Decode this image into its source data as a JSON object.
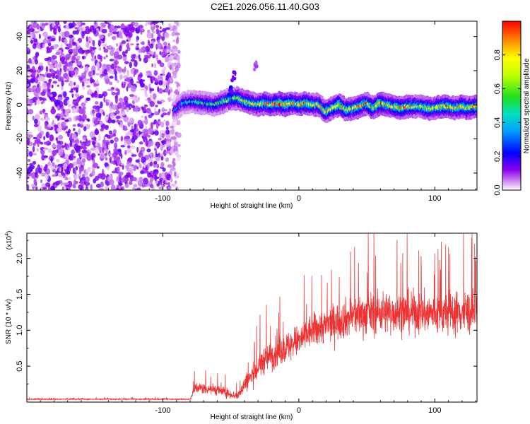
{
  "figure": {
    "title": "C2E1.2026.056.11.40.G03"
  },
  "chart_data": [
    {
      "type": "heatmap",
      "title": "",
      "xlabel": "Height of straight line (km)",
      "ylabel": "Frequency (Hz)",
      "xlim": [
        -200,
        131
      ],
      "ylim": [
        -50,
        49
      ],
      "xticks": [
        -100,
        0,
        100
      ],
      "xtick_labels": [
        "-100",
        "0",
        "100"
      ],
      "yticks": [
        -40,
        -20,
        0,
        20,
        40
      ],
      "ytick_labels": [
        "-40",
        "-20",
        "0",
        "20",
        "40"
      ],
      "colorbar": {
        "label": "Normalized spectral amplitude",
        "range": [
          0,
          1
        ],
        "ticks": [
          0.0,
          0.2,
          0.4,
          0.6,
          0.8
        ],
        "tick_labels": [
          "0.0",
          "0.2",
          "0.4",
          "0.6",
          "0.8"
        ]
      },
      "noise_region": {
        "x_range": [
          -200,
          -92
        ],
        "typical_amplitude": 0.15
      },
      "ridge": {
        "x": [
          -92,
          -85,
          -78,
          -70,
          -62,
          -55,
          -50,
          -45,
          -40,
          -35,
          -30,
          -25,
          -20,
          -15,
          -10,
          -5,
          0,
          5,
          10,
          15,
          20,
          25,
          30,
          35,
          40,
          45,
          50,
          55,
          60,
          65,
          70,
          75,
          80,
          85,
          90,
          95,
          100,
          105,
          110,
          115,
          120,
          125,
          130
        ],
        "frequency": [
          -4,
          1,
          2,
          1,
          0,
          2,
          3,
          4,
          2,
          1,
          0,
          1,
          0,
          1,
          0,
          1,
          0,
          1,
          0,
          0,
          -4,
          -2,
          0,
          -3,
          -2,
          -1,
          1,
          -2,
          1,
          0,
          -1,
          -2,
          -1,
          -1,
          -1,
          -2,
          -2,
          -1,
          -1,
          -2,
          -1,
          -2,
          -1
        ],
        "amplitude": [
          0.3,
          0.4,
          0.45,
          0.5,
          0.55,
          0.6,
          0.55,
          0.7,
          0.75,
          0.8,
          0.7,
          0.85,
          0.8,
          0.9,
          0.95,
          0.85,
          0.8,
          0.9,
          0.8,
          0.75,
          0.85,
          0.8,
          0.9,
          0.85,
          0.8,
          0.9,
          0.85,
          0.8,
          0.95,
          0.8,
          0.85,
          0.9,
          0.85,
          0.8,
          0.75,
          0.85,
          0.8,
          0.9,
          0.85,
          0.8,
          0.95,
          0.85,
          0.8
        ]
      },
      "spurs": [
        {
          "x": -48,
          "frequency": 17,
          "amplitude": 0.15
        },
        {
          "x": -32,
          "frequency": 23,
          "amplitude": 0.1
        },
        {
          "x": -50,
          "frequency": 8,
          "amplitude": 0.2
        }
      ]
    },
    {
      "type": "line",
      "title": "",
      "xlabel": "Height of straight line (km)",
      "ylabel": "SNR (10 * v/v)",
      "y_multiplier_label": "(x10",
      "y_multiplier_exponent": "4",
      "xlim": [
        -200,
        131
      ],
      "ylim": [
        0,
        23500
      ],
      "xticks": [
        -100,
        0,
        100
      ],
      "xtick_labels": [
        "-100",
        "0",
        "100"
      ],
      "yticks": [
        5000,
        10000,
        15000,
        20000
      ],
      "ytick_labels": [
        "0.5",
        "1.0",
        "1.5",
        "2.0"
      ],
      "color": "#ee3333",
      "series": [
        {
          "name": "SNR",
          "x_range": [
            -200,
            131
          ],
          "x_knots": [
            -200,
            -80,
            -76,
            -62,
            -45,
            -40,
            -33,
            -25,
            -10,
            0,
            10,
            25,
            40,
            60,
            80,
            100,
            120,
            131
          ],
          "mean_knots": [
            400,
            400,
            2000,
            1800,
            800,
            2500,
            4000,
            6000,
            7500,
            8500,
            10000,
            11000,
            12000,
            12500,
            12500,
            12300,
            12500,
            12500
          ],
          "spread_knots": [
            120,
            120,
            1400,
            1400,
            1000,
            2200,
            3000,
            3500,
            3800,
            4000,
            4200,
            4500,
            5000,
            5200,
            5200,
            5200,
            5500,
            5500
          ],
          "peak_max": 23400
        }
      ]
    }
  ]
}
